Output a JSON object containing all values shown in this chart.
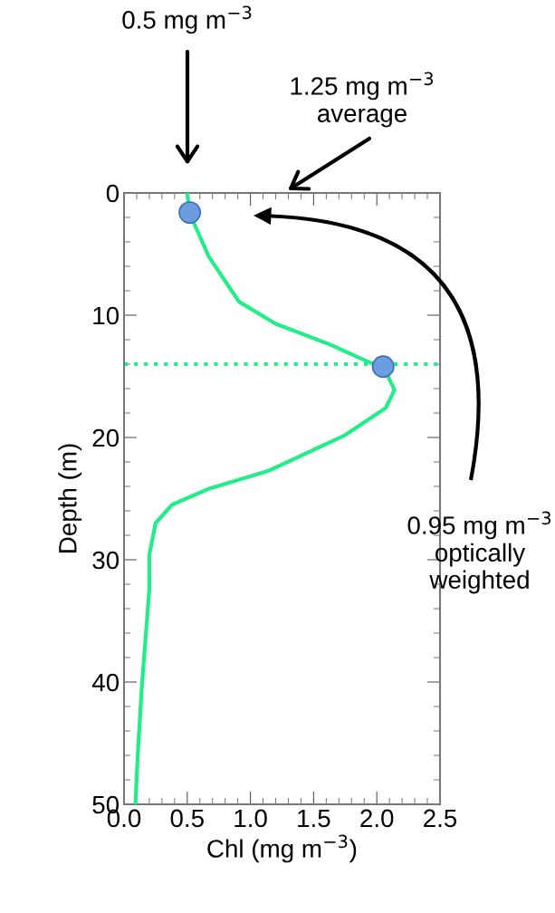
{
  "chart_data": {
    "type": "line",
    "xlabel": "Chl (mg m$^{−3}$)",
    "ylabel": "Depth (m)",
    "xlim": [
      0,
      2.5
    ],
    "xticks": [
      {
        "value": 0,
        "label": "0.0"
      },
      0.5,
      {
        "value": 1,
        "label": "1.0"
      },
      1.5,
      {
        "value": 2,
        "label": "2.0"
      },
      2.5
    ],
    "ylim": [
      50,
      0
    ],
    "yticks": [
      0,
      10,
      20,
      30,
      40,
      50
    ],
    "grid": false,
    "series": [
      {
        "type": "line",
        "color": "#22ee88",
        "x": [
          0.5,
          0.52,
          0.67,
          0.91,
          1.2,
          1.63,
          1.95,
          2.06,
          2.14,
          2.07,
          1.75,
          1.15,
          0.67,
          0.38,
          0.25,
          0.2,
          0.2,
          0.18,
          0.14,
          0.11,
          0.09
        ],
        "values": [
          0,
          1.7,
          5.2,
          8.9,
          10.7,
          12.4,
          13.9,
          14.4,
          16.1,
          17.6,
          19.8,
          22.7,
          24.2,
          25.5,
          27,
          29.6,
          32.4,
          35.1,
          40.5,
          45.7,
          50
        ],
        "marker": "none"
      },
      {
        "type": "scatter",
        "color": "#6b9de0",
        "x": [
          0.52,
          2.05
        ],
        "values": [
          1.6,
          14.2
        ],
        "marker": "circle"
      }
    ],
    "ref_lines": [
      {
        "axis": "y",
        "value": 14,
        "color": "#22ee88",
        "line_style": "dotted"
      }
    ],
    "annotations": [
      "0.5 mg m$^{−3}$",
      "1.25 mg m$^{−3}$\naverage",
      "0.95 mg m$^{−3}$\noptically\nweighted"
    ]
  }
}
